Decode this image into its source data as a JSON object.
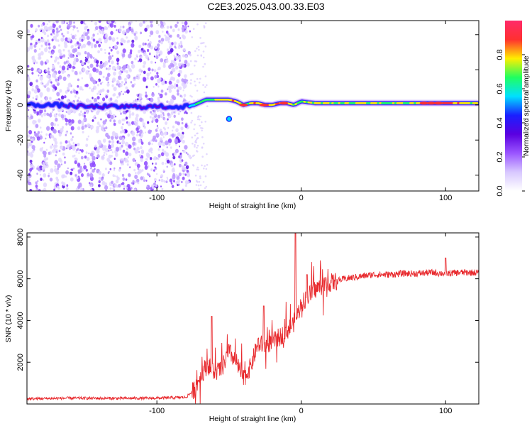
{
  "title": "C2E3.2025.043.00.33.E03",
  "chart_data": [
    {
      "type": "heatmap",
      "xlabel": "Height of straight line (km)",
      "ylabel": "Frequency (Hz)",
      "xlim": [
        -190,
        123
      ],
      "ylim": [
        -49,
        48
      ],
      "xticks": [
        -100,
        0,
        100
      ],
      "yticks": [
        -40,
        -20,
        0,
        20,
        40
      ],
      "colorbar": {
        "label": "Normalized spectral amplitude",
        "range": [
          0,
          1
        ],
        "ticks": [
          0.0,
          0.2,
          0.4,
          0.6,
          0.8
        ],
        "palette": [
          "#ffffff",
          "#d8c8ff",
          "#9a55ff",
          "#5a00e0",
          "#1a20ff",
          "#00e0ff",
          "#20ff60",
          "#ffee00",
          "#ff3030",
          "#ff2a6a"
        ]
      },
      "carrier": {
        "x": [
          -190,
          -170,
          -150,
          -130,
          -110,
          -90,
          -80,
          -74,
          -66,
          -58,
          -50,
          -45,
          -40,
          -35,
          -30,
          -25,
          -20,
          -15,
          -10,
          -5,
          0,
          10,
          20,
          40,
          60,
          80,
          100,
          123
        ],
        "y": [
          0,
          0,
          -1,
          -1,
          -1,
          -1,
          -1,
          0,
          3,
          3,
          3,
          2,
          0,
          1,
          1,
          0,
          0,
          1,
          1,
          0,
          2,
          1,
          1,
          1,
          1,
          1,
          1,
          1
        ],
        "amplitude": [
          0.45,
          0.45,
          0.4,
          0.4,
          0.4,
          0.4,
          0.5,
          0.6,
          0.75,
          0.8,
          0.8,
          0.85,
          0.7,
          0.8,
          0.85,
          0.9,
          0.85,
          0.9,
          0.85,
          0.8,
          0.75,
          0.8,
          0.75,
          0.75,
          0.75,
          0.8,
          0.9,
          0.75
        ]
      },
      "noise_region_x": [
        -190,
        -77
      ]
    },
    {
      "type": "line",
      "xlabel": "Height of straight line (km)",
      "ylabel": "SNR (10 * v/v)",
      "color": "#e8292d",
      "xlim": [
        -190,
        123
      ],
      "ylim": [
        0,
        8200
      ],
      "xticks": [
        -100,
        0,
        100
      ],
      "yticks": [
        2000,
        4000,
        6000,
        8000
      ],
      "x": [
        -190,
        -160,
        -130,
        -100,
        -80,
        -75,
        -70,
        -65,
        -60,
        -55,
        -50,
        -45,
        -40,
        -35,
        -30,
        -25,
        -20,
        -15,
        -10,
        -5,
        -3,
        0,
        5,
        10,
        15,
        20,
        30,
        40,
        50,
        60,
        70,
        80,
        90,
        100,
        110,
        123
      ],
      "y": [
        250,
        280,
        270,
        280,
        320,
        600,
        1300,
        1900,
        1500,
        1700,
        2500,
        2000,
        1200,
        1800,
        2900,
        2800,
        3000,
        3200,
        3500,
        3900,
        4200,
        4800,
        5200,
        5500,
        5700,
        5800,
        6000,
        6100,
        6200,
        6200,
        6250,
        6250,
        6300,
        6250,
        6300,
        6300
      ],
      "peaks": [
        {
          "x": -62,
          "y": 4200
        },
        {
          "x": -26,
          "y": 4700
        },
        {
          "x": -4,
          "y": 8200
        },
        {
          "x": 4,
          "y": 6200
        },
        {
          "x": 100,
          "y": 7000
        }
      ]
    }
  ]
}
